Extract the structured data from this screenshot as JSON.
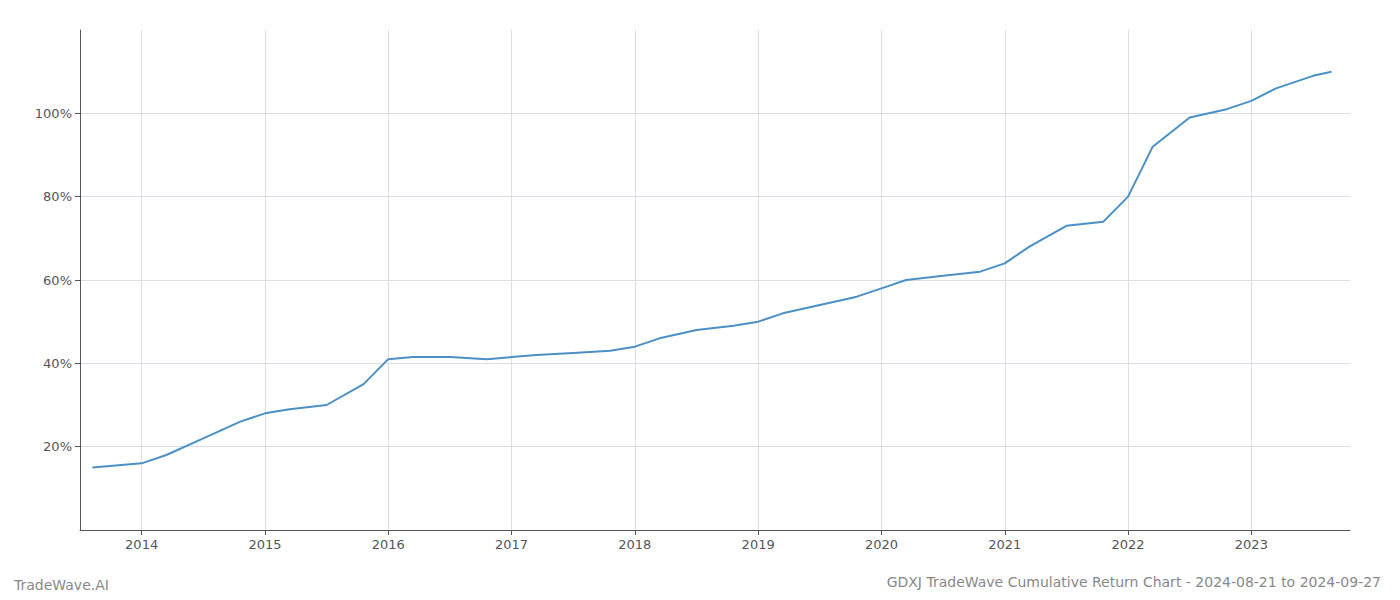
{
  "chart_data": {
    "type": "line",
    "title": "GDXJ TradeWave Cumulative Return Chart - 2024-08-21 to 2024-09-27",
    "annotations": [
      "TradeWave.AI"
    ],
    "x": [
      2013.6,
      2014.0,
      2014.2,
      2014.5,
      2014.8,
      2015.0,
      2015.2,
      2015.5,
      2015.8,
      2016.0,
      2016.2,
      2016.5,
      2016.8,
      2017.0,
      2017.2,
      2017.5,
      2017.8,
      2018.0,
      2018.2,
      2018.5,
      2018.8,
      2019.0,
      2019.2,
      2019.5,
      2019.8,
      2020.0,
      2020.2,
      2020.5,
      2020.8,
      2021.0,
      2021.2,
      2021.5,
      2021.8,
      2022.0,
      2022.2,
      2022.5,
      2022.8,
      2023.0,
      2023.2,
      2023.5,
      2023.65
    ],
    "values": [
      15,
      16,
      18,
      22,
      26,
      28,
      29,
      30,
      35,
      41,
      41.5,
      41.5,
      41,
      41.5,
      42,
      42.5,
      43,
      44,
      46,
      48,
      49,
      50,
      52,
      54,
      56,
      58,
      60,
      61,
      62,
      64,
      68,
      73,
      74,
      80,
      92,
      99,
      101,
      103,
      106,
      109,
      110
    ],
    "color": "#4a90c4",
    "xlim": [
      2013.5,
      2023.8
    ],
    "xticks": [
      2014,
      2015,
      2016,
      2017,
      2018,
      2019,
      2020,
      2021,
      2022,
      2023
    ],
    "ylim": [
      0,
      120
    ],
    "yticks": [
      {
        "value": 20,
        "label": "20%"
      },
      {
        "value": 40,
        "label": "40%"
      },
      {
        "value": 60,
        "label": "60%"
      },
      {
        "value": 80,
        "label": "80%"
      },
      {
        "value": 100,
        "label": "100%"
      }
    ],
    "grid": true
  }
}
